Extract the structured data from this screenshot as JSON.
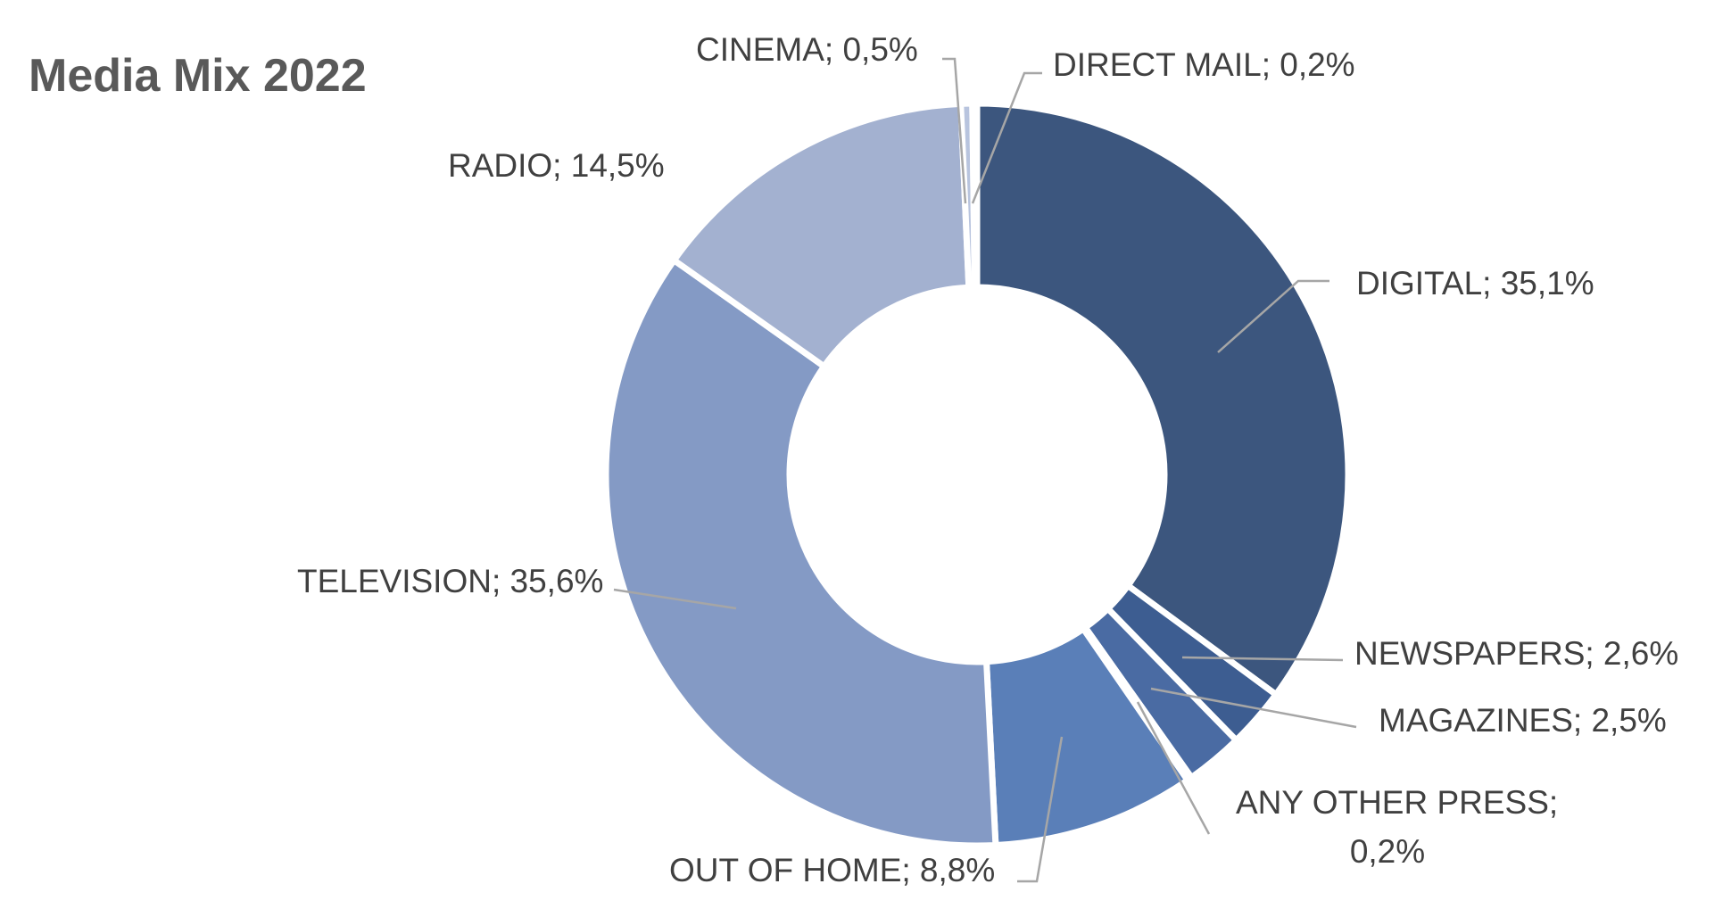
{
  "chart_data": {
    "type": "pie",
    "subtype": "doughnut",
    "title": "Media Mix 2022",
    "unit": "%",
    "legend": "none",
    "slices": [
      {
        "name": "DIGITAL",
        "value": 35.1,
        "label": "DIGITAL; 35,1%",
        "color": "#3c567e"
      },
      {
        "name": "NEWSPAPERS",
        "value": 2.6,
        "label": "NEWSPAPERS; 2,6%",
        "color": "#3d5d91"
      },
      {
        "name": "MAGAZINES",
        "value": 2.5,
        "label": "MAGAZINES; 2,5%",
        "color": "#4a6ba3"
      },
      {
        "name": "ANY OTHER PRESS",
        "value": 0.2,
        "label": [
          "ANY OTHER PRESS;",
          "0,2%"
        ],
        "color": "#4f72ad"
      },
      {
        "name": "OUT OF HOME",
        "value": 8.8,
        "label": "OUT OF HOME; 8,8%",
        "color": "#5a7fb8"
      },
      {
        "name": "TELEVISION",
        "value": 35.6,
        "label": "TELEVISION; 35,6%",
        "color": "#849ac5"
      },
      {
        "name": "RADIO",
        "value": 14.5,
        "label": "RADIO; 14,5%",
        "color": "#a3b1d0"
      },
      {
        "name": "CINEMA",
        "value": 0.5,
        "label": "CINEMA; 0,5%",
        "color": "#b8c4de"
      },
      {
        "name": "DIRECT MAIL",
        "value": 0.2,
        "label": "DIRECT MAIL; 0,2%",
        "color": "#2f4a72"
      }
    ]
  }
}
